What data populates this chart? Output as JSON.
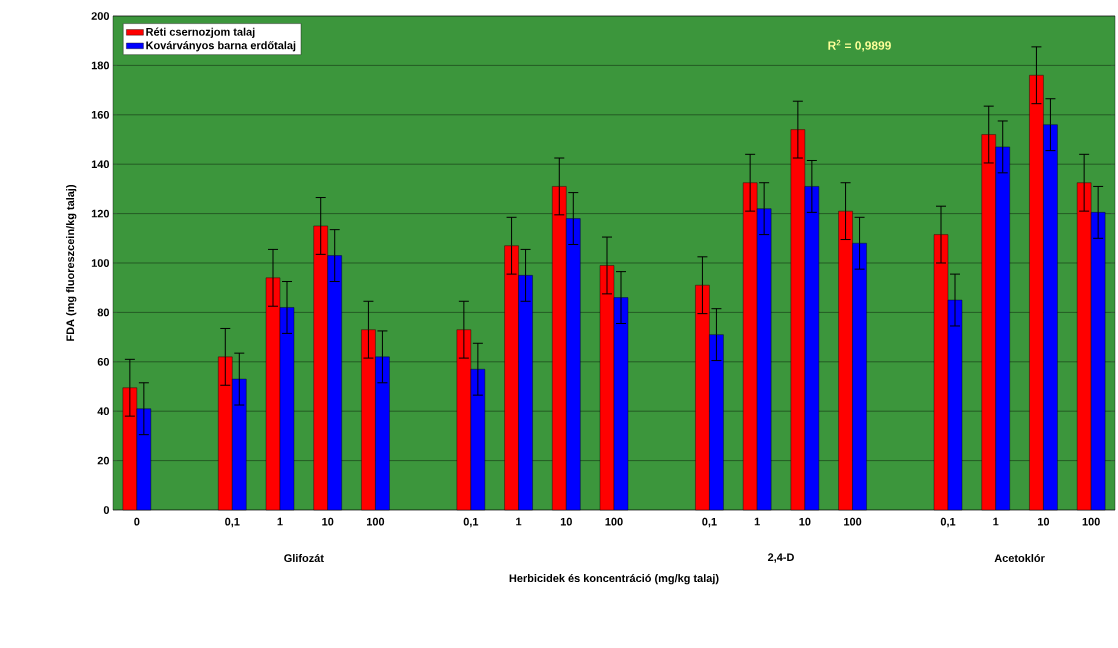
{
  "chart_data": {
    "type": "bar",
    "xlabel": "Herbicidek és koncentráció (mg/kg talaj)",
    "ylabel": "FDA (mg fluoreszcein/kg talaj)",
    "categories": [
      "0",
      null,
      "0,1",
      "1",
      "10",
      "100",
      null,
      "0,1",
      "1",
      "10",
      "100",
      null,
      "0,1",
      "1",
      "10",
      "100",
      null,
      "0,1",
      "1",
      "10",
      "100"
    ],
    "series": [
      {
        "name": "Réti csernozjom talaj",
        "color": "#ff0000",
        "values": [
          49.5,
          null,
          62,
          94,
          115,
          73,
          null,
          73,
          107,
          131,
          99,
          null,
          91,
          132.5,
          154,
          121,
          null,
          111.5,
          152,
          176,
          132.5
        ],
        "errors": [
          11.5,
          null,
          11.5,
          11.5,
          11.5,
          11.5,
          null,
          11.5,
          11.5,
          11.5,
          11.5,
          null,
          11.5,
          11.5,
          11.5,
          11.5,
          null,
          11.5,
          11.5,
          11.5,
          11.5
        ]
      },
      {
        "name": "Kovárványos barna erdőtalaj",
        "color": "#0000ff",
        "values": [
          41,
          null,
          53,
          82,
          103,
          62,
          null,
          57,
          95,
          118,
          86,
          null,
          71,
          122,
          131,
          108,
          null,
          85,
          147,
          156,
          120.5
        ],
        "errors": [
          10.5,
          null,
          10.5,
          10.5,
          10.5,
          10.5,
          null,
          10.5,
          10.5,
          10.5,
          10.5,
          null,
          10.5,
          10.5,
          10.5,
          10.5,
          null,
          10.5,
          10.5,
          10.5,
          10.5
        ]
      }
    ],
    "ylim": [
      0,
      200
    ],
    "yticks": [
      0,
      20,
      40,
      60,
      80,
      100,
      120,
      140,
      160,
      180,
      200
    ],
    "grid": "y",
    "legend": "top left",
    "annotations": [
      "R$^{2}$ = 0,9899",
      "Glifozát",
      "2,4-D",
      "Acetoklór"
    ]
  }
}
